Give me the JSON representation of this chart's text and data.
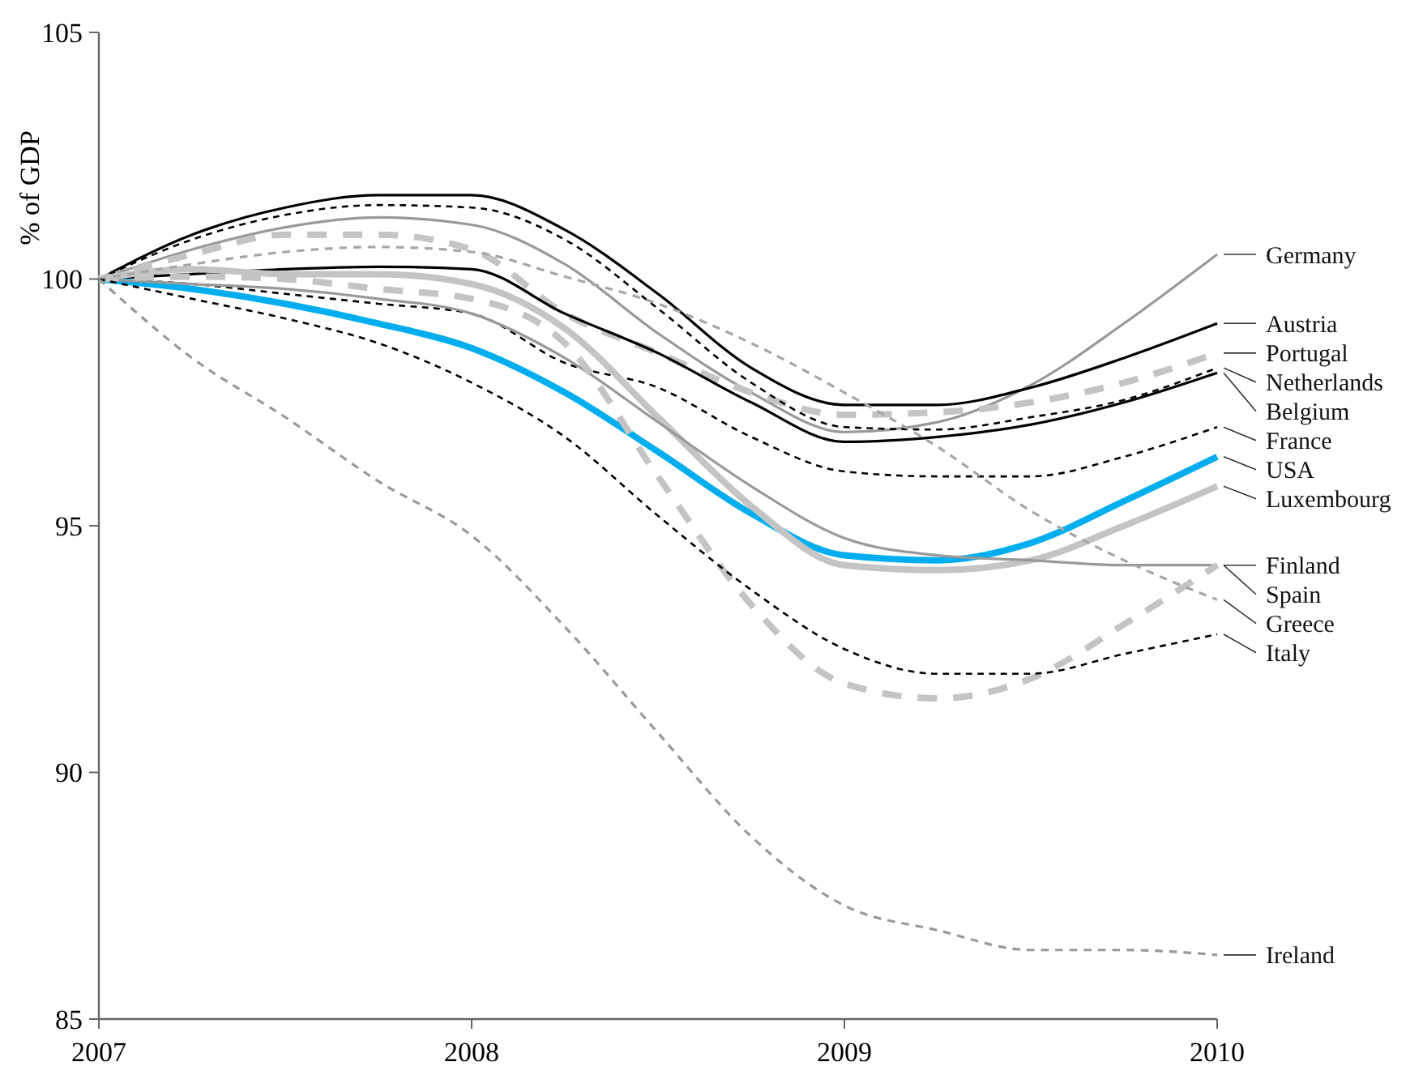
{
  "chart_data": {
    "type": "line",
    "ylabel": "% of GDP",
    "x": [
      2007,
      2007.25,
      2007.5,
      2007.75,
      2008,
      2008.25,
      2008.5,
      2008.75,
      2009,
      2009.25,
      2009.5,
      2009.75,
      2010
    ],
    "xlim": [
      2007,
      2010
    ],
    "xticks": [
      2007,
      2008,
      2009,
      2010
    ],
    "ylim": [
      85,
      105
    ],
    "yticks": [
      85,
      90,
      95,
      100,
      105
    ],
    "grid": false,
    "legend": false,
    "marker": "none",
    "series": [
      {
        "name": "Germany",
        "color": "#999999",
        "line_style": "solid",
        "values": [
          100,
          100.6,
          101.05,
          101.25,
          101.1,
          100.3,
          98.9,
          97.7,
          96.9,
          97.1,
          97.85,
          99.1,
          100.5
        ]
      },
      {
        "name": "Austria",
        "color": "#000000",
        "line_style": "solid",
        "values": [
          100,
          100.9,
          101.45,
          101.7,
          101.7,
          101.0,
          99.7,
          98.2,
          97.45,
          97.45,
          97.8,
          98.4,
          99.1
        ]
      },
      {
        "name": "Portugal",
        "color": "#c4c4c4",
        "line_style": "dashed",
        "values": [
          100,
          100.5,
          100.9,
          100.9,
          100.6,
          99.3,
          98.5,
          97.7,
          97.25,
          97.3,
          97.5,
          97.9,
          98.5
        ]
      },
      {
        "name": "Netherlands",
        "color": "#000000",
        "line_style": "dashed",
        "values": [
          100,
          100.8,
          101.3,
          101.5,
          101.45,
          100.8,
          99.4,
          97.9,
          97.0,
          96.95,
          97.2,
          97.55,
          98.2
        ]
      },
      {
        "name": "Belgium",
        "color": "#000000",
        "line_style": "solid",
        "values": [
          100,
          100.1,
          100.2,
          100.25,
          100.2,
          99.3,
          98.5,
          97.5,
          96.7,
          96.8,
          97.05,
          97.5,
          98.1
        ]
      },
      {
        "name": "France",
        "color": "#000000",
        "line_style": "dashed",
        "values": [
          100,
          99.9,
          99.7,
          99.5,
          99.3,
          98.3,
          97.8,
          96.8,
          96.1,
          96.0,
          96.0,
          96.4,
          97.0
        ]
      },
      {
        "name": "USA",
        "color": "#00aeef",
        "line_style": "solid",
        "values": [
          100,
          99.8,
          99.5,
          99.1,
          98.6,
          97.7,
          96.5,
          95.25,
          94.4,
          94.3,
          94.65,
          95.5,
          96.4
        ]
      },
      {
        "name": "Luxembourg",
        "color": "#c4c4c4",
        "line_style": "solid",
        "values": [
          100,
          100.2,
          100.1,
          100.1,
          99.9,
          99.0,
          97.2,
          95.4,
          94.2,
          94.1,
          94.3,
          95.0,
          95.8
        ]
      },
      {
        "name": "Finland",
        "color": "#999999",
        "line_style": "solid",
        "values": [
          100,
          99.9,
          99.8,
          99.6,
          99.3,
          98.4,
          97.1,
          95.8,
          94.75,
          94.4,
          94.3,
          94.2,
          94.2
        ]
      },
      {
        "name": "Spain",
        "color": "#c4c4c4",
        "line_style": "dashed",
        "values": [
          100,
          100.05,
          100.0,
          99.8,
          99.6,
          98.7,
          96.0,
          93.4,
          91.8,
          91.5,
          91.9,
          93.0,
          94.2
        ]
      },
      {
        "name": "Greece",
        "color": "#a6a6a6",
        "line_style": "dashed",
        "values": [
          100,
          100.3,
          100.55,
          100.65,
          100.55,
          100.05,
          99.5,
          98.7,
          97.7,
          96.6,
          95.3,
          94.3,
          93.5
        ]
      },
      {
        "name": "Italy",
        "color": "#000000",
        "line_style": "dashed",
        "values": [
          100,
          99.6,
          99.2,
          98.7,
          97.9,
          96.8,
          95.2,
          93.7,
          92.5,
          92.0,
          92.0,
          92.4,
          92.8
        ]
      },
      {
        "name": "Ireland",
        "color": "#999999",
        "line_style": "dashed",
        "values": [
          100,
          98.4,
          97.2,
          95.9,
          94.8,
          92.95,
          90.8,
          88.7,
          87.3,
          86.8,
          86.4,
          86.4,
          86.3
        ]
      }
    ]
  }
}
